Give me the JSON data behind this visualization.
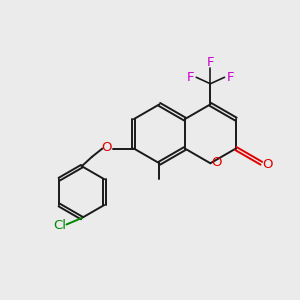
{
  "background_color": "#ebebeb",
  "bond_color": "#1a1a1a",
  "oxygen_color": "#e00000",
  "fluorine_color": "#cc00cc",
  "chlorine_color": "#008800",
  "figsize": [
    3.0,
    3.0
  ],
  "dpi": 100,
  "xlim": [
    0,
    10
  ],
  "ylim": [
    0,
    10
  ],
  "bond_lw": 1.4,
  "font_size": 9.5
}
